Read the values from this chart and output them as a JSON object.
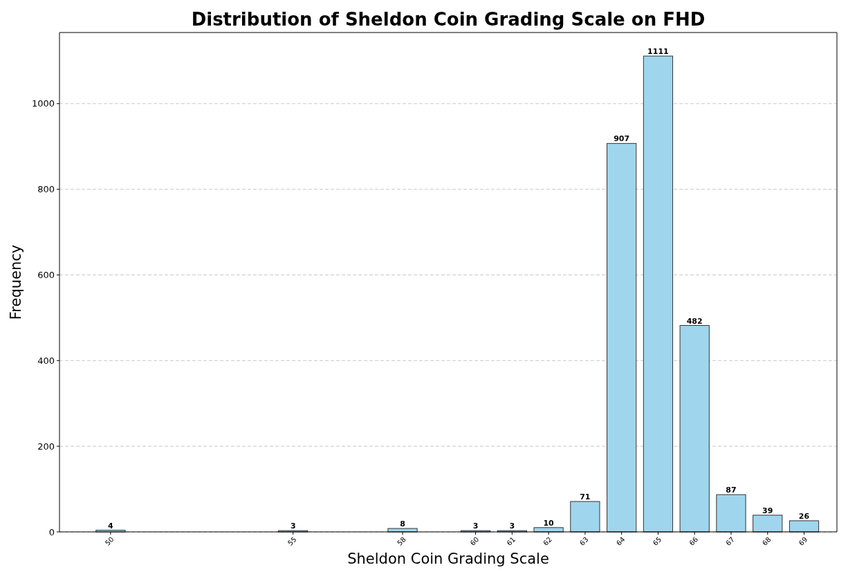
{
  "chart_data": {
    "type": "bar",
    "title": "Distribution of Sheldon Coin Grading Scale on FHD",
    "xlabel": "Sheldon Coin Grading Scale",
    "ylabel": "Frequency",
    "x": [
      50,
      55,
      58,
      60,
      61,
      62,
      63,
      64,
      65,
      66,
      67,
      68,
      69
    ],
    "values": [
      4,
      3,
      8,
      3,
      3,
      10,
      71,
      907,
      1111,
      482,
      87,
      39,
      26
    ],
    "color": "#9fd6ed",
    "xlim": [
      48.6,
      69.9
    ],
    "xticks": [
      50,
      55,
      58,
      60,
      61,
      62,
      63,
      64,
      65,
      66,
      67,
      68,
      69
    ],
    "ylim": [
      0,
      1166
    ],
    "yticks": [
      0,
      200,
      400,
      600,
      800,
      1000
    ],
    "grid": "y",
    "data_labels": true
  }
}
